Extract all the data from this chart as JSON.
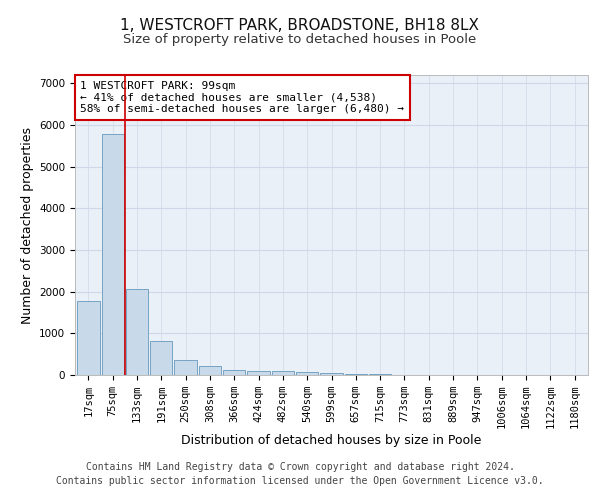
{
  "title": "1, WESTCROFT PARK, BROADSTONE, BH18 8LX",
  "subtitle": "Size of property relative to detached houses in Poole",
  "xlabel": "Distribution of detached houses by size in Poole",
  "ylabel": "Number of detached properties",
  "bar_labels": [
    "17sqm",
    "75sqm",
    "133sqm",
    "191sqm",
    "250sqm",
    "308sqm",
    "366sqm",
    "424sqm",
    "482sqm",
    "540sqm",
    "599sqm",
    "657sqm",
    "715sqm",
    "773sqm",
    "831sqm",
    "889sqm",
    "947sqm",
    "1006sqm",
    "1064sqm",
    "1122sqm",
    "1180sqm"
  ],
  "bar_values": [
    1780,
    5780,
    2060,
    810,
    360,
    205,
    120,
    100,
    100,
    80,
    60,
    30,
    30,
    0,
    0,
    0,
    0,
    0,
    0,
    0,
    0
  ],
  "bar_color": "#c8d9ea",
  "bar_edge_color": "#6699bb",
  "grid_color": "#d0d8e8",
  "background_color": "#eaf0f8",
  "vline_color": "#cc0000",
  "vline_pos": 1.5,
  "annotation_text": "1 WESTCROFT PARK: 99sqm\n← 41% of detached houses are smaller (4,538)\n58% of semi-detached houses are larger (6,480) →",
  "annotation_box_facecolor": "#ffffff",
  "annotation_box_edgecolor": "#cc0000",
  "ylim": [
    0,
    7200
  ],
  "yticks": [
    0,
    1000,
    2000,
    3000,
    4000,
    5000,
    6000,
    7000
  ],
  "footer_line1": "Contains HM Land Registry data © Crown copyright and database right 2024.",
  "footer_line2": "Contains public sector information licensed under the Open Government Licence v3.0.",
  "title_fontsize": 11,
  "subtitle_fontsize": 9.5,
  "axis_label_fontsize": 9,
  "tick_fontsize": 7.5,
  "annotation_fontsize": 8,
  "footer_fontsize": 7
}
